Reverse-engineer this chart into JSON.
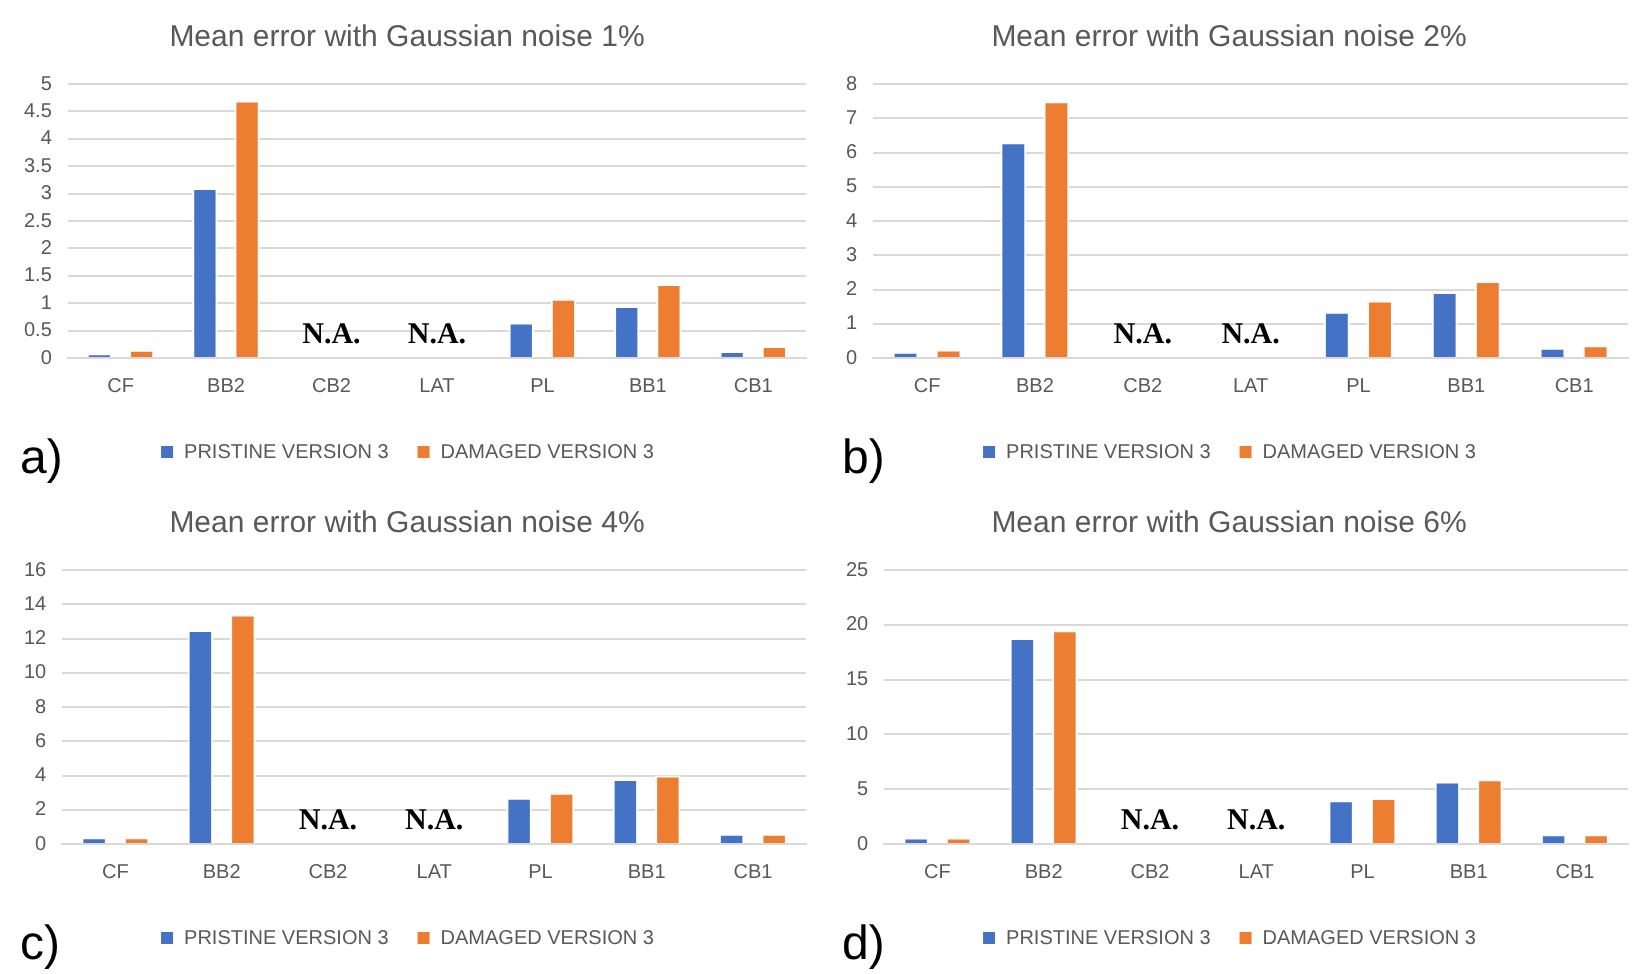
{
  "chart_data": [
    {
      "type": "bar",
      "title": "Mean error with Gaussian noise 1%",
      "categories": [
        "CF",
        "BB2",
        "CB2",
        "LAT",
        "PL",
        "BB1",
        "CB1"
      ],
      "series": [
        {
          "name": "PRISTINE VERSION 3",
          "color": "#4472c4",
          "values": [
            0.08,
            3.1,
            null,
            null,
            0.65,
            0.95,
            0.13
          ]
        },
        {
          "name": "DAMAGED VERSION 3",
          "color": "#ed7d31",
          "values": [
            0.15,
            4.7,
            null,
            null,
            1.08,
            1.35,
            0.22
          ]
        }
      ],
      "ylim": [
        0,
        5
      ],
      "yticks": [
        0,
        0.5,
        1,
        1.5,
        2,
        2.5,
        3,
        3.5,
        4,
        4.5,
        5
      ],
      "grid": "y",
      "legend": "bottom",
      "annotations": [
        "N.A.",
        "N.A.",
        "a)"
      ]
    },
    {
      "type": "bar",
      "title": "Mean error with Gaussian noise 2%",
      "categories": [
        "CF",
        "BB2",
        "CB2",
        "LAT",
        "PL",
        "BB1",
        "CB1"
      ],
      "series": [
        {
          "name": "PRISTINE VERSION 3",
          "color": "#4472c4",
          "values": [
            0.18,
            6.3,
            null,
            null,
            1.35,
            1.93,
            0.3
          ]
        },
        {
          "name": "DAMAGED VERSION 3",
          "color": "#ed7d31",
          "values": [
            0.25,
            7.5,
            null,
            null,
            1.68,
            2.25,
            0.37
          ]
        }
      ],
      "ylim": [
        0,
        8
      ],
      "yticks": [
        0,
        1,
        2,
        3,
        4,
        5,
        6,
        7,
        8
      ],
      "grid": "y",
      "legend": "bottom",
      "annotations": [
        "N.A.",
        "N.A.",
        "b)"
      ]
    },
    {
      "type": "bar",
      "title": "Mean error with Gaussian noise 4%",
      "categories": [
        "CF",
        "BB2",
        "CB2",
        "LAT",
        "PL",
        "BB1",
        "CB1"
      ],
      "series": [
        {
          "name": "PRISTINE VERSION 3",
          "color": "#4472c4",
          "values": [
            0.4,
            12.5,
            null,
            null,
            2.7,
            3.8,
            0.6
          ]
        },
        {
          "name": "DAMAGED VERSION 3",
          "color": "#ed7d31",
          "values": [
            0.4,
            13.4,
            null,
            null,
            3.0,
            4.0,
            0.6
          ]
        }
      ],
      "ylim": [
        0,
        16
      ],
      "yticks": [
        0,
        2,
        4,
        6,
        8,
        10,
        12,
        14,
        16
      ],
      "grid": "y",
      "legend": "bottom",
      "annotations": [
        "N.A.",
        "N.A.",
        "c)"
      ]
    },
    {
      "type": "bar",
      "title": "Mean error with Gaussian noise 6%",
      "categories": [
        "CF",
        "BB2",
        "CB2",
        "LAT",
        "PL",
        "BB1",
        "CB1"
      ],
      "series": [
        {
          "name": "PRISTINE VERSION 3",
          "color": "#4472c4",
          "values": [
            0.6,
            18.8,
            null,
            null,
            4.0,
            5.7,
            0.9
          ]
        },
        {
          "name": "DAMAGED VERSION 3",
          "color": "#ed7d31",
          "values": [
            0.6,
            19.5,
            null,
            null,
            4.2,
            5.9,
            0.9
          ]
        }
      ],
      "ylim": [
        0,
        25
      ],
      "yticks": [
        0,
        5,
        10,
        15,
        20,
        25
      ],
      "grid": "y",
      "legend": "bottom",
      "annotations": [
        "N.A.",
        "N.A.",
        "d)"
      ]
    }
  ]
}
